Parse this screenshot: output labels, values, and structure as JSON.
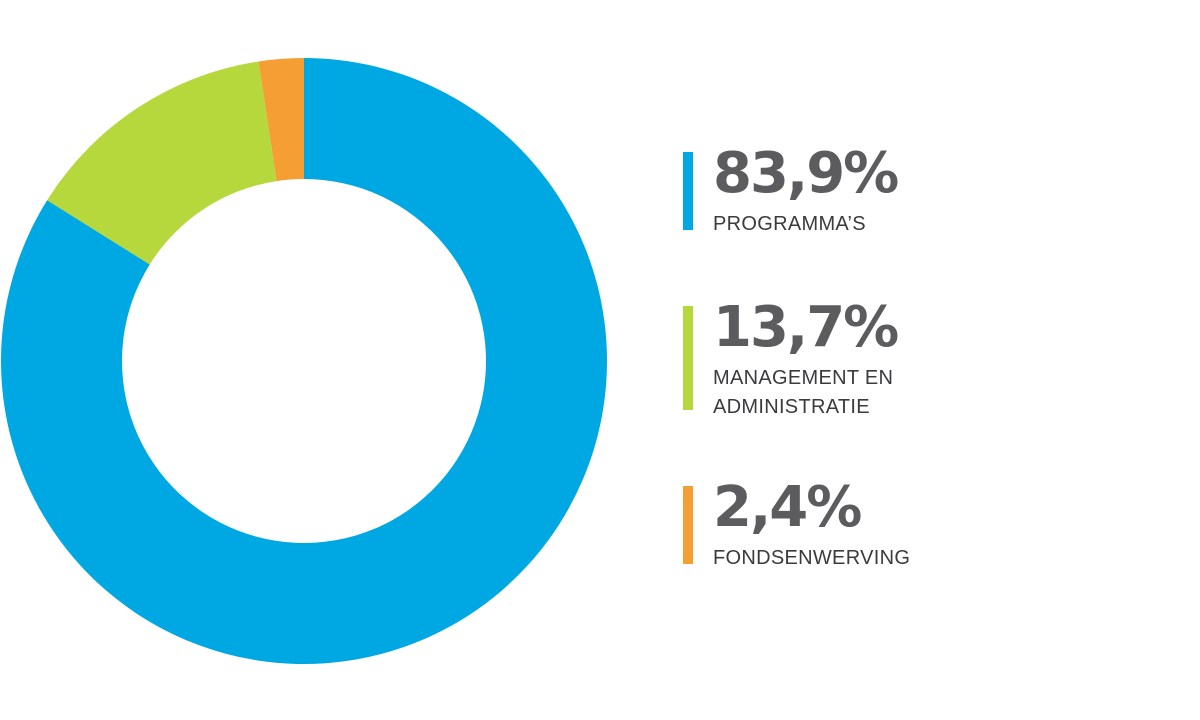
{
  "chart_data": {
    "type": "pie",
    "donut": true,
    "categories": [
      "PROGRAMMA'S",
      "MANAGEMENT EN ADMINISTRATIE",
      "FONDSENWERVING"
    ],
    "values": [
      83.9,
      13.7,
      2.4
    ],
    "value_labels": [
      "83,9%",
      "13,7%",
      "2,4%"
    ],
    "colors": [
      "#00a8e3",
      "#b6d83d",
      "#f59e33"
    ],
    "start_angle": "12 o'clock",
    "direction": "clockwise",
    "legend": "right",
    "legend_items": [
      {
        "value": "83,9%",
        "label": "PROGRAMMA’S",
        "color": "#00a8e3"
      },
      {
        "value": "13,7%",
        "label": "MANAGEMENT EN\nADMINISTRATIE",
        "color": "#b6d83d"
      },
      {
        "value": "2,4%",
        "label": "FONDSENWERVING",
        "color": "#f59e33"
      }
    ]
  }
}
